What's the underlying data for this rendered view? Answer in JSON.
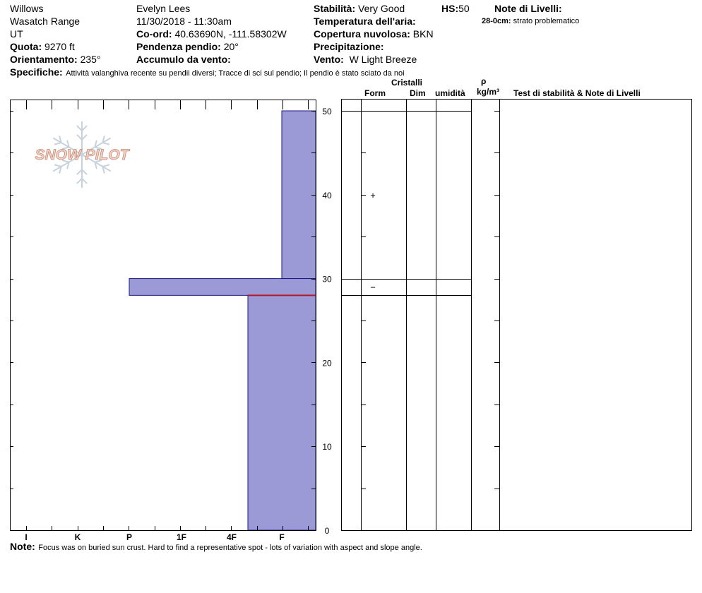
{
  "header": {
    "location": "Willows",
    "range": "Wasatch Range",
    "state": "UT",
    "elevation_label": "Quota:",
    "elevation_value": "9270 ft",
    "aspect_label": "Orientamento:",
    "aspect_value": "235°",
    "observer": "Evelyn Lees",
    "datetime": "11/30/2018 - 11:30am",
    "coord_label": "Co-ord:",
    "coord_value": "40.63690N, -111.58302W",
    "slope_label": "Pendenza pendio:",
    "slope_value": "20°",
    "wind_loading_label": "Accumulo da vento:",
    "wind_loading_value": "",
    "stability_label": "Stabilità:",
    "stability_value": "Very Good",
    "hs_label": "HS:",
    "hs_value": "50",
    "air_temp_label": "Temperatura dell'aria:",
    "air_temp_value": "",
    "sky_label": "Copertura nuvolosa:",
    "sky_value": "BKN",
    "precip_label": "Precipitazione:",
    "precip_value": "",
    "wind_label": "Vento:",
    "wind_value": "W Light Breeze",
    "layer_notes_label": "Note di Livelli:",
    "layer_note_range": "28-0cm:",
    "layer_note_text": "strato problematico",
    "specifics_label": "Specifiche:",
    "specifics_value": "Attività valanghiva recente su pendii diversi;  Tracce di sci sul pendio;  Il pendio è stato sciato da noi"
  },
  "logo": {
    "text": "SNOW PILOT"
  },
  "table_header": {
    "crystals": "Cristalli",
    "form": "Form",
    "size": "Dim",
    "moisture": "umidità",
    "rho": "ρ",
    "density_unit": "kg/m³",
    "tests": "Test di stabilità & Note di Livelli"
  },
  "footer": {
    "note_label": "Note:",
    "note_text": "Focus was on buried sun crust.  Hard to find a representative spot - lots of variation with aspect and slope angle."
  },
  "colors": {
    "layer_fill": "#9c9ad6",
    "layer_stroke": "#1a1a80",
    "problem_line": "#b01b2c",
    "logo_fill": "#f4d2c4",
    "logo_outline": "#c28a78",
    "snowflake": "#c8d2dc"
  },
  "chart_data": {
    "type": "snow-profile",
    "hardness_scale": [
      "I",
      "K",
      "P",
      "1F",
      "4F",
      "F"
    ],
    "depth_ticks": [
      0,
      10,
      20,
      30,
      40,
      50
    ],
    "depth_range_cm": [
      0,
      50
    ],
    "layers": [
      {
        "top": 50,
        "bottom": 30,
        "hardness": "F"
      },
      {
        "top": 30,
        "bottom": 28,
        "hardness": "P"
      },
      {
        "top": 28,
        "bottom": 0,
        "hardness": "4F-"
      }
    ],
    "grain_symbols": [
      {
        "depth": 40,
        "symbol": "+"
      },
      {
        "depth": 29,
        "symbol": "−"
      }
    ],
    "problem_layer_depth": 28
  }
}
